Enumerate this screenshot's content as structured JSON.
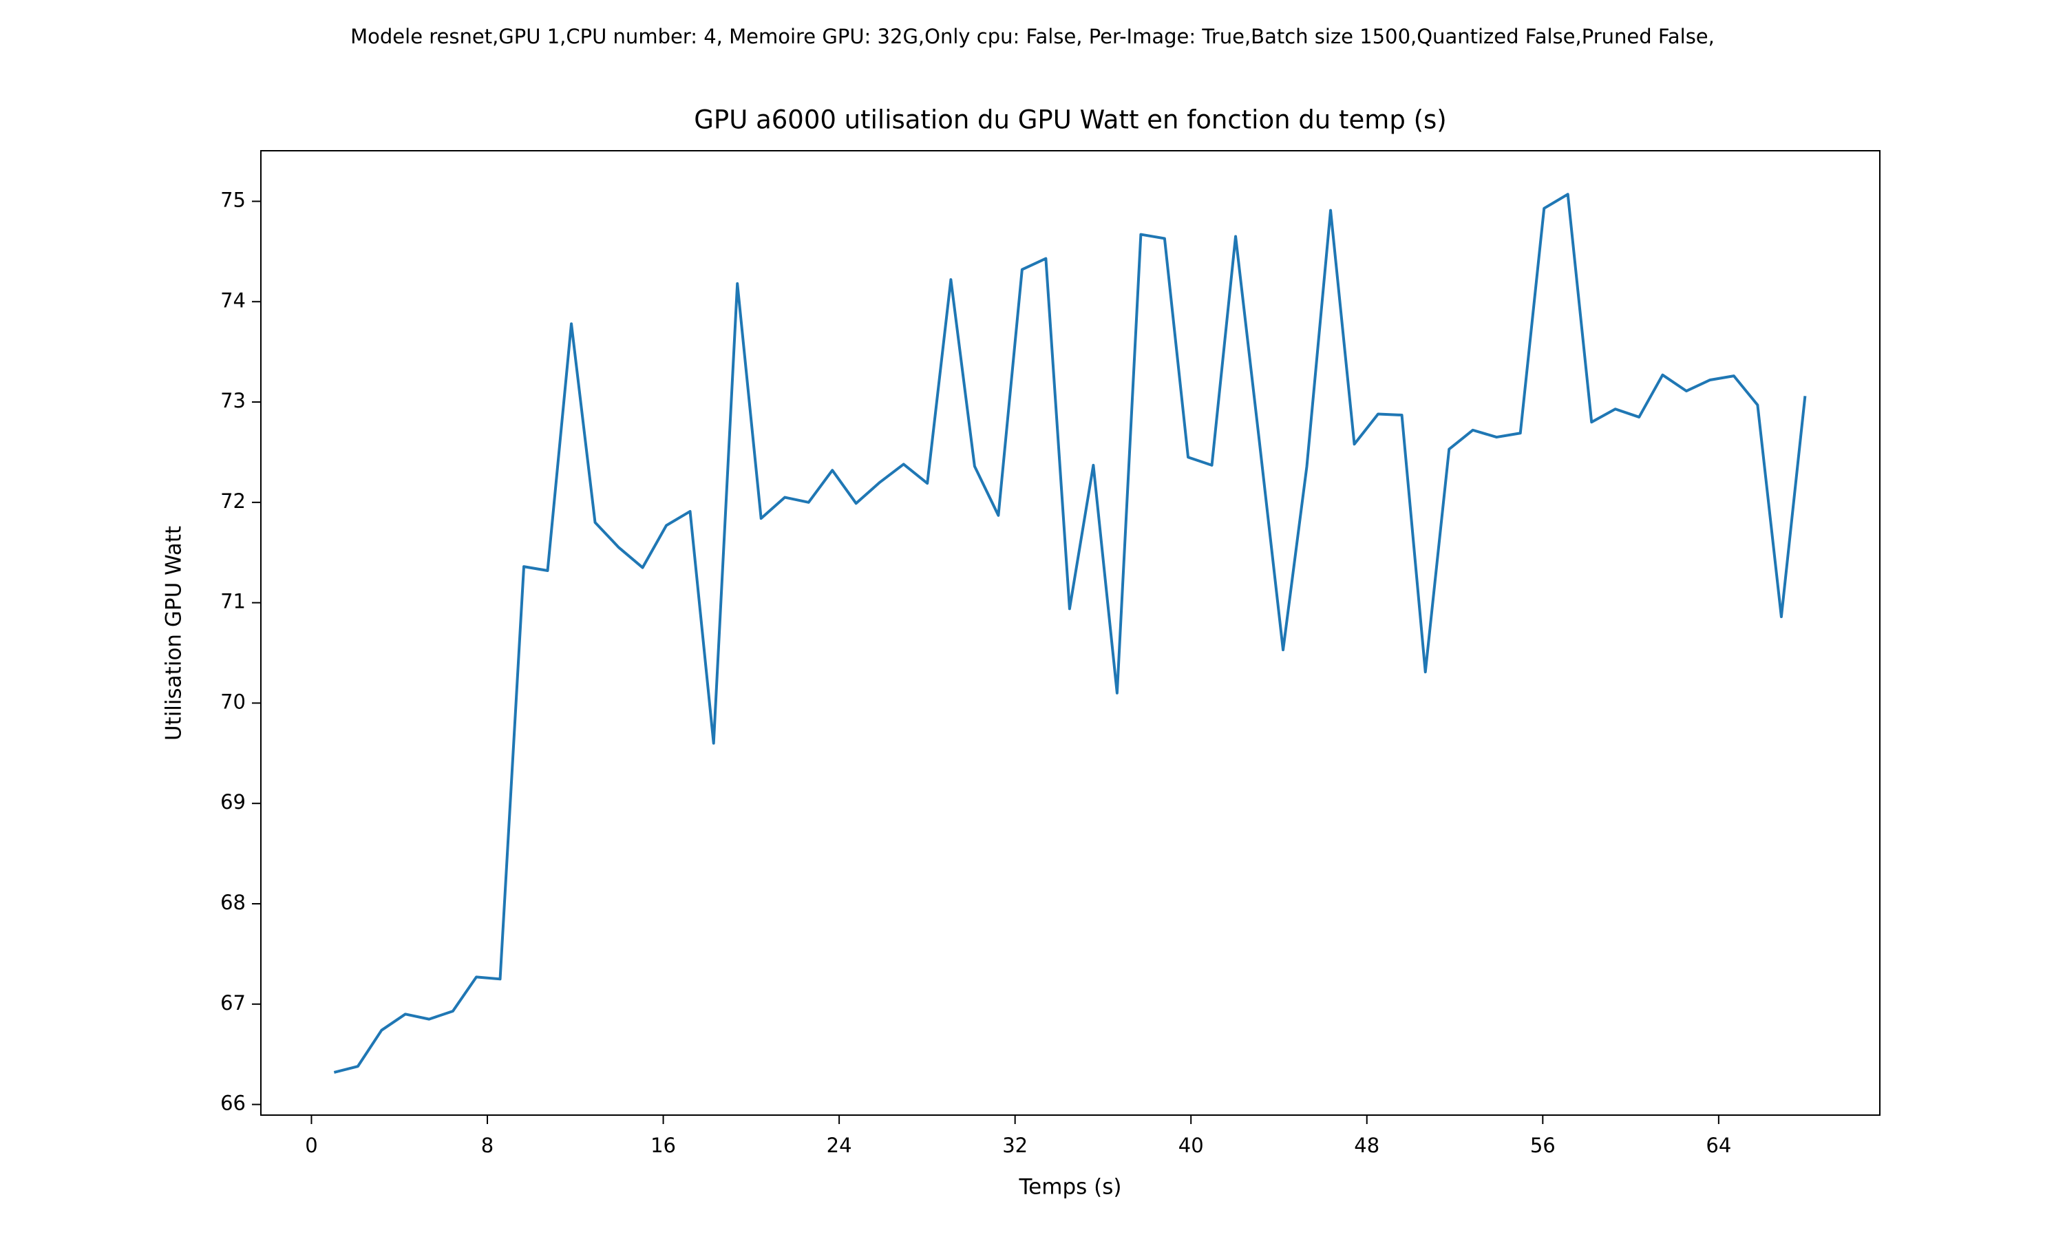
{
  "chart_data": {
    "type": "line",
    "suptitle": "Modele resnet,GPU 1,CPU number: 4, Memoire GPU: 32G,Only cpu: False, Per-Image: True,Batch size 1500,Quantized False,Pruned False,",
    "title": "GPU a6000 utilisation du GPU Watt en fonction du temp (s)",
    "xlabel": "Temps (s)",
    "ylabel": "Utilisation GPU Watt",
    "x": [
      1.03,
      2.11,
      3.19,
      4.27,
      5.35,
      6.43,
      7.5,
      8.58,
      9.66,
      10.74,
      11.82,
      12.9,
      13.98,
      15.06,
      16.14,
      17.22,
      18.29,
      19.37,
      20.45,
      21.53,
      22.61,
      23.69,
      24.77,
      25.85,
      26.93,
      28.01,
      29.08,
      30.16,
      31.24,
      32.32,
      33.4,
      34.48,
      35.56,
      36.64,
      37.72,
      38.8,
      39.87,
      40.95,
      42.03,
      43.11,
      44.19,
      45.27,
      46.35,
      47.43,
      48.51,
      49.59,
      50.66,
      51.74,
      52.82,
      53.9,
      54.98,
      56.06,
      57.14,
      58.22,
      59.3,
      60.38,
      61.45,
      62.53,
      63.61,
      64.69,
      65.77,
      66.85,
      67.93
    ],
    "values": [
      66.32,
      66.38,
      66.74,
      66.9,
      66.85,
      66.93,
      67.27,
      67.25,
      71.36,
      71.32,
      73.78,
      71.8,
      71.55,
      71.35,
      71.77,
      71.91,
      69.6,
      74.18,
      71.84,
      72.05,
      72.0,
      72.32,
      71.99,
      72.2,
      72.38,
      72.19,
      74.22,
      72.36,
      71.87,
      74.32,
      74.43,
      70.94,
      72.37,
      70.1,
      74.67,
      74.63,
      72.45,
      72.37,
      74.65,
      72.61,
      70.53,
      72.36,
      74.91,
      72.58,
      72.88,
      72.87,
      70.31,
      72.53,
      72.72,
      72.65,
      72.69,
      74.93,
      75.07,
      72.8,
      72.93,
      72.85,
      73.27,
      73.11,
      73.22,
      73.26,
      72.97,
      70.86,
      73.06
    ],
    "color": "#1f77b4",
    "xlim": [
      -2.3,
      71.33
    ],
    "ylim": [
      65.894,
      75.504
    ],
    "xticks": [
      0,
      8,
      16,
      24,
      32,
      40,
      48,
      56,
      64
    ],
    "yticks": [
      66,
      67,
      68,
      69,
      70,
      71,
      72,
      73,
      74,
      75
    ],
    "grid": false
  }
}
